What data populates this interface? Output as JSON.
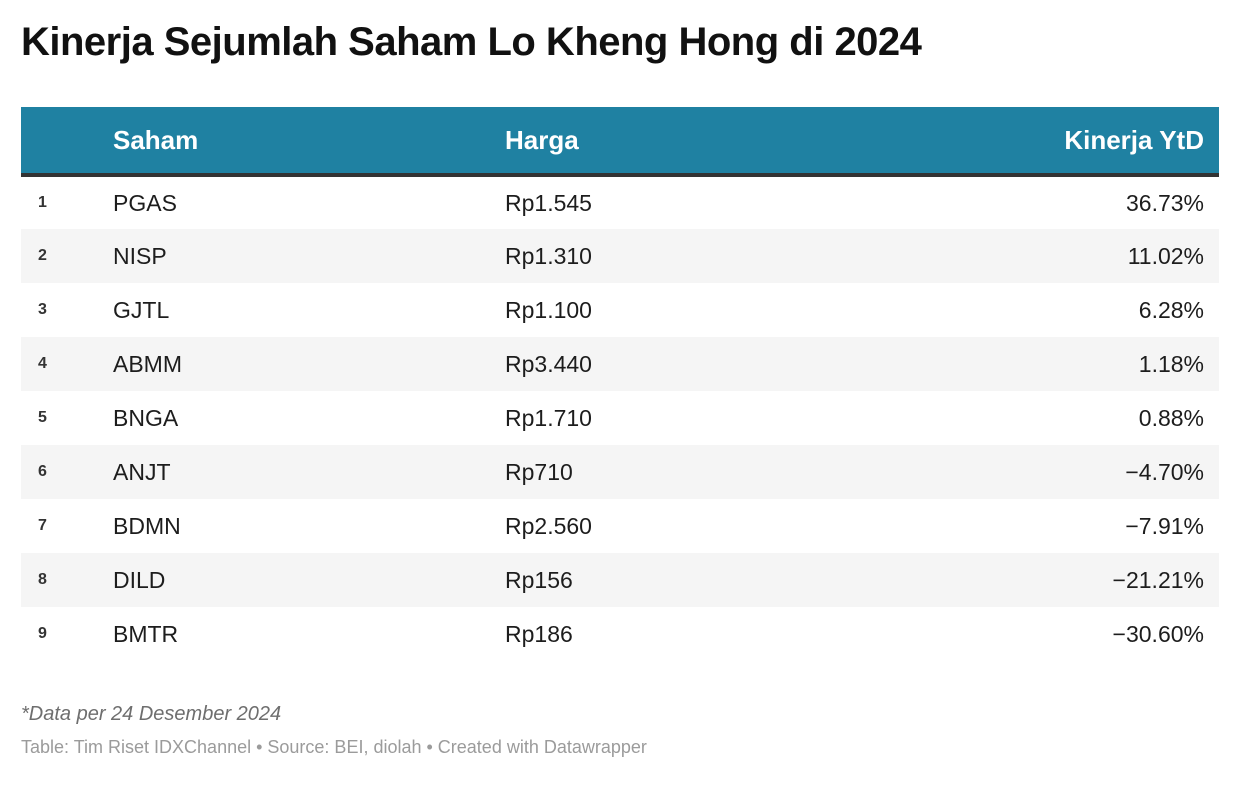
{
  "title": "Kinerja Sejumlah Saham Lo Kheng Hong di 2024",
  "colors": {
    "header_bg": "#1f81a2",
    "header_text": "#ffffff",
    "header_border": "#333333",
    "row_stripe": "#f5f5f5",
    "body_text": "#1d1d1d",
    "footnote_text": "#6e6e6e",
    "credits_text": "#9b9b9b"
  },
  "chart_data": {
    "type": "table",
    "title": "Kinerja Sejumlah Saham Lo Kheng Hong di 2024",
    "columns": [
      "",
      "Saham",
      "Harga",
      "Kinerja YtD"
    ],
    "rows": [
      [
        "1",
        "PGAS",
        "Rp1.545",
        "36.73%"
      ],
      [
        "2",
        "NISP",
        "Rp1.310",
        "11.02%"
      ],
      [
        "3",
        "GJTL",
        "Rp1.100",
        "6.28%"
      ],
      [
        "4",
        "ABMM",
        "Rp3.440",
        "1.18%"
      ],
      [
        "5",
        "BNGA",
        "Rp1.710",
        "0.88%"
      ],
      [
        "6",
        "ANJT",
        "Rp710",
        "−4.70%"
      ],
      [
        "7",
        "BDMN",
        "Rp2.560",
        "−7.91%"
      ],
      [
        "8",
        "DILD",
        "Rp156",
        "−21.21%"
      ],
      [
        "9",
        "BMTR",
        "Rp186",
        "−30.60%"
      ]
    ],
    "performance_values_pct": [
      36.73,
      11.02,
      6.28,
      1.18,
      0.88,
      -4.7,
      -7.91,
      -21.21,
      -30.6
    ],
    "layout_hints": {
      "striped_rows": "even",
      "ytd_alignment": "right",
      "grid": "off"
    }
  },
  "footer": {
    "footnote": "*Data per 24 Desember 2024",
    "credits": "Table: Tim Riset IDXChannel • Source: BEI, diolah • Created with Datawrapper"
  }
}
